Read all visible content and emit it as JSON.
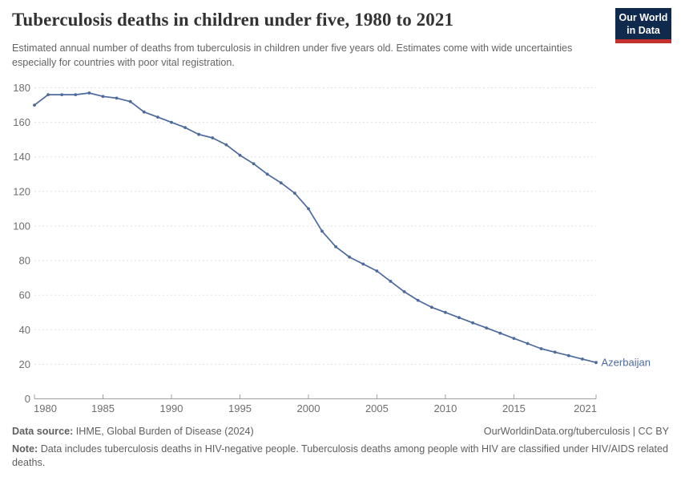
{
  "header": {
    "title": "Tuberculosis deaths in children under five, 1980 to 2021",
    "subtitle": "Estimated annual number of deaths from tuberculosis in children under five years old. Estimates come with wide uncertainties especially for countries with poor vital registration.",
    "logo_line1": "Our World",
    "logo_line2": "in Data"
  },
  "chart_data": {
    "type": "line",
    "title": "Tuberculosis deaths in children under five, 1980 to 2021",
    "xlabel": "",
    "ylabel": "",
    "xlim": [
      1980,
      2021
    ],
    "ylim": [
      0,
      180
    ],
    "xticks": [
      1980,
      1985,
      1990,
      1995,
      2000,
      2005,
      2010,
      2015,
      2021
    ],
    "yticks": [
      0,
      20,
      40,
      60,
      80,
      100,
      120,
      140,
      160,
      180
    ],
    "grid": "horizontal-dashed",
    "legend_position": "end-of-line-label",
    "x": [
      1980,
      1981,
      1982,
      1983,
      1984,
      1985,
      1986,
      1987,
      1988,
      1989,
      1990,
      1991,
      1992,
      1993,
      1994,
      1995,
      1996,
      1997,
      1998,
      1999,
      2000,
      2001,
      2002,
      2003,
      2004,
      2005,
      2006,
      2007,
      2008,
      2009,
      2010,
      2011,
      2012,
      2013,
      2014,
      2015,
      2016,
      2017,
      2018,
      2019,
      2020,
      2021
    ],
    "series": [
      {
        "name": "Azerbaijan",
        "color": "#4C6A9C",
        "values": [
          170,
          176,
          176,
          176,
          177,
          175,
          174,
          172,
          166,
          163,
          160,
          157,
          153,
          151,
          147,
          141,
          136,
          130,
          125,
          119,
          110,
          97,
          88,
          82,
          78,
          74,
          68,
          62,
          57,
          53,
          50,
          47,
          44,
          41,
          38,
          35,
          32,
          29,
          27,
          25,
          23,
          21
        ]
      }
    ]
  },
  "footer": {
    "source_label": "Data source:",
    "source_value": "IHME, Global Burden of Disease (2024)",
    "rights": "OurWorldinData.org/tuberculosis | CC BY",
    "note_label": "Note:",
    "note_value": "Data includes tuberculosis deaths in HIV-negative people. Tuberculosis deaths among people with HIV are classified under HIV/AIDS related deaths."
  },
  "colors": {
    "line": "#4C6A9C",
    "grid": "#e0e0e0",
    "axis": "#a0a0a0",
    "tick_label": "#6e6e6e",
    "title": "#333333",
    "subtitle": "#646464",
    "footer_text": "#5f5f5f",
    "logo_bg": "#102A4E",
    "logo_red": "#C4302B"
  }
}
